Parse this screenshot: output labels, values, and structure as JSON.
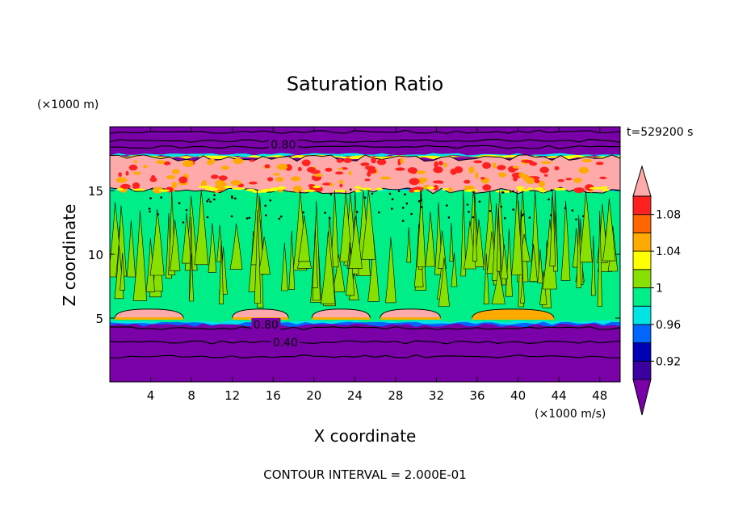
{
  "chart_data": {
    "type": "heatmap",
    "title": "Saturation Ratio",
    "xlabel": "X coordinate",
    "ylabel": "Z coordinate",
    "x_unit": "(×1000 m/s)",
    "y_unit": "(×1000 m)",
    "time_label": "t=529200 s",
    "footer": "CONTOUR INTERVAL = 2.000E-01",
    "xlim": [
      0,
      50
    ],
    "ylim": [
      0,
      20
    ],
    "x_ticks": [
      4,
      8,
      12,
      16,
      20,
      24,
      28,
      32,
      36,
      40,
      44,
      48
    ],
    "y_ticks": [
      5,
      10,
      15
    ],
    "contour_labels": [
      {
        "text": "0.80",
        "x": 17.0,
        "y": 18.6
      },
      {
        "text": "0.80",
        "x": 15.3,
        "y": 4.5
      },
      {
        "text": "0.40",
        "x": 17.2,
        "y": 3.1
      }
    ],
    "layers": [
      {
        "name": "upper dry",
        "z_from": 18.2,
        "z_to": 20.0,
        "ratio": 0.4
      },
      {
        "name": "upper supersaturated band",
        "z_from": 15.2,
        "z_to": 17.6,
        "ratio": 1.1
      },
      {
        "name": "mid cloud layer",
        "z_from": 5.5,
        "z_to": 15.2,
        "ratio": 0.99
      },
      {
        "name": "low supersaturated patches",
        "z_from": 5.0,
        "z_to": 5.8,
        "ratio": 1.1
      },
      {
        "name": "lower dry",
        "z_from": 0.0,
        "z_to": 4.5,
        "ratio": 0.4
      }
    ],
    "colorbar": {
      "labels": [
        "1.08",
        "1.04",
        "1",
        "0.96",
        "0.92"
      ],
      "colors": [
        "#7a00a8",
        "#3a00a0",
        "#0000b4",
        "#0066ff",
        "#00e4e4",
        "#00ee88",
        "#88e000",
        "#ffff00",
        "#ffaa00",
        "#ff6600",
        "#ff2020",
        "#ffaaaa"
      ]
    },
    "colors": {
      "dry": "#7a00a8",
      "cloud_green": "#00ee88",
      "cloud_lime": "#88e000",
      "pink": "#ffaaaa",
      "red": "#ff2020",
      "yellow": "#ffff00",
      "orange": "#ffaa00",
      "cyan": "#00e4e4",
      "blue": "#0066ff"
    }
  }
}
